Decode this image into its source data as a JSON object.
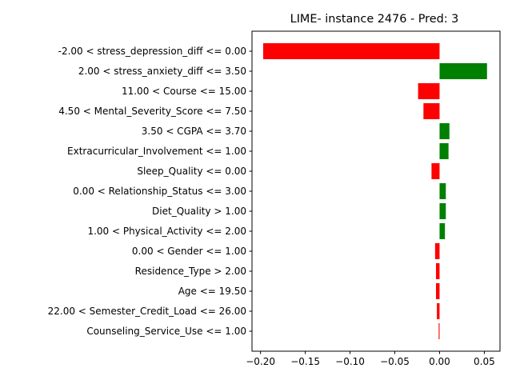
{
  "chart_data": {
    "type": "bar",
    "orientation": "horizontal",
    "title": "LIME- instance 2476 - Pred: 3",
    "xlabel": "",
    "ylabel": "",
    "xlim": [
      -0.2095,
      0.0675
    ],
    "xticks": [
      -0.2,
      -0.15,
      -0.1,
      -0.05,
      0.0,
      0.05
    ],
    "xtick_labels": [
      "−0.20",
      "−0.15",
      "−0.10",
      "−0.05",
      "0.00",
      "0.05"
    ],
    "grid": false,
    "colors": {
      "negative": "#ff0000",
      "positive": "#008000",
      "axis": "#000000"
    },
    "categories": [
      "-2.00 < stress_depression_diff <= 0.00",
      "2.00 < stress_anxiety_diff <= 3.50",
      "11.00 < Course <= 15.00",
      "4.50 < Mental_Severity_Score <= 7.50",
      "3.50 < CGPA <= 3.70",
      "Extracurricular_Involvement <= 1.00",
      "Sleep_Quality <= 0.00",
      "0.00 < Relationship_Status <= 3.00",
      "Diet_Quality > 1.00",
      "1.00 < Physical_Activity <= 2.00",
      "0.00 < Gender <= 1.00",
      "Residence_Type > 2.00",
      "Age <= 19.50",
      "22.00 < Semester_Credit_Load <= 26.00",
      "Counseling_Service_Use <= 1.00"
    ],
    "values": [
      -0.197,
      0.053,
      -0.024,
      -0.018,
      0.011,
      0.01,
      -0.009,
      0.007,
      0.007,
      0.006,
      -0.005,
      -0.004,
      -0.004,
      -0.003,
      -0.001
    ]
  }
}
